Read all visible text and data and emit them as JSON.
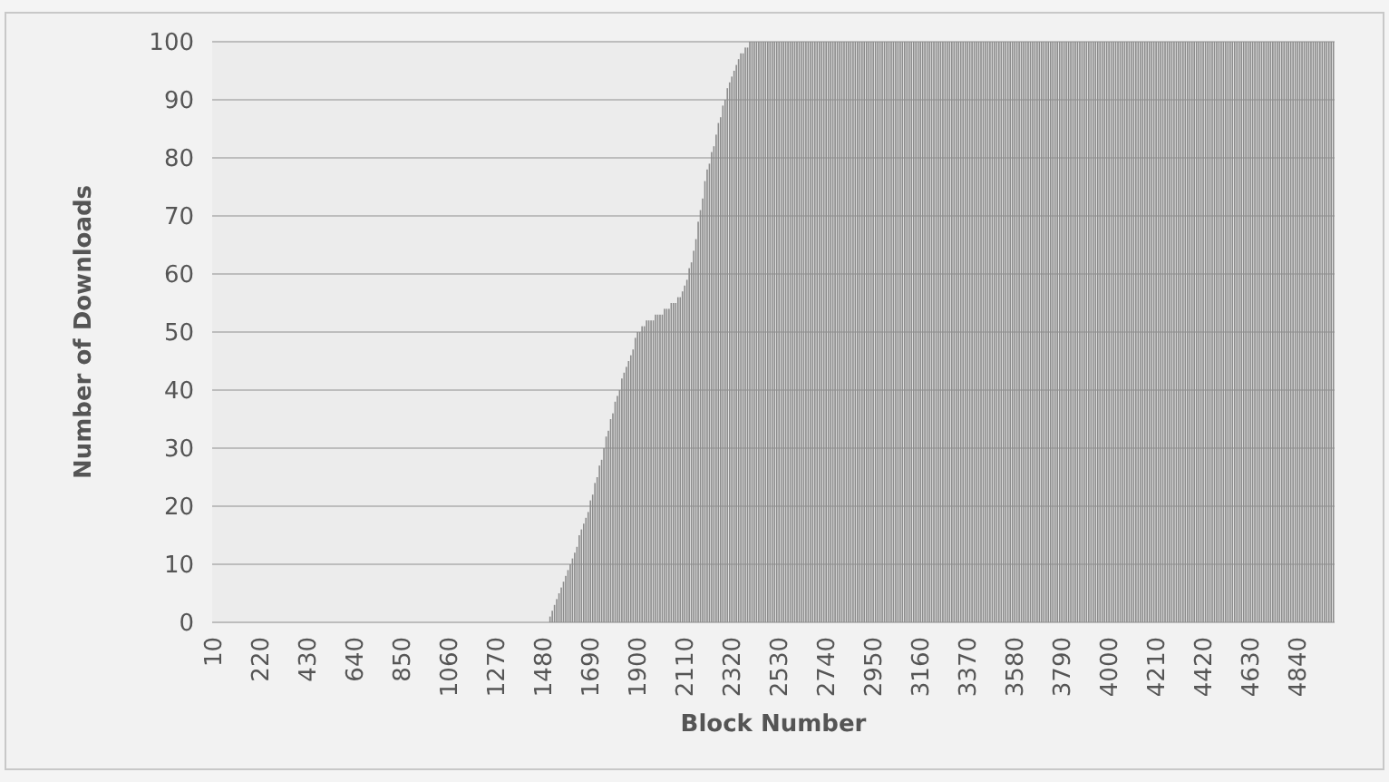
{
  "chart_data": {
    "type": "bar",
    "xlabel": "Block Number",
    "ylabel": "Number of Downloads",
    "color": "#8c8c8c",
    "ylim": [
      0,
      100
    ],
    "yticks": [
      0,
      10,
      20,
      30,
      40,
      50,
      60,
      70,
      80,
      90,
      100
    ],
    "grid": "y",
    "categories": [
      "10",
      null,
      null,
      null,
      null,
      null,
      null,
      null,
      null,
      null,
      null,
      null,
      null,
      null,
      null,
      null,
      null,
      null,
      null,
      null,
      null,
      "220",
      null,
      null,
      null,
      null,
      null,
      null,
      null,
      null,
      null,
      null,
      null,
      null,
      null,
      null,
      null,
      null,
      null,
      null,
      null,
      null,
      "430",
      null,
      null,
      null,
      null,
      null,
      null,
      null,
      null,
      null,
      null,
      null,
      null,
      null,
      null,
      null,
      null,
      null,
      null,
      null,
      null,
      "640",
      null,
      null,
      null,
      null,
      null,
      null,
      null,
      null,
      null,
      null,
      null,
      null,
      null,
      null,
      null,
      null,
      null,
      null,
      null,
      null,
      "850",
      null,
      null,
      null,
      null,
      null,
      null,
      null,
      null,
      null,
      null,
      null,
      null,
      null,
      null,
      null,
      null,
      null,
      null,
      null,
      null,
      "1060",
      null,
      null,
      null,
      null,
      null,
      null,
      null,
      null,
      null,
      null,
      null,
      null,
      null,
      null,
      null,
      null,
      null,
      null,
      null,
      null,
      "1270",
      null,
      null,
      null,
      null,
      null,
      null,
      null,
      null,
      null,
      null,
      null,
      null,
      null,
      null,
      null,
      null,
      null,
      null,
      null,
      null,
      "1480",
      null,
      null,
      null,
      null,
      null,
      null,
      null,
      null,
      null,
      null,
      null,
      null,
      null,
      null,
      null,
      null,
      null,
      null,
      null,
      null,
      "1690",
      null,
      null,
      null,
      null,
      null,
      null,
      null,
      null,
      null,
      null,
      null,
      null,
      null,
      null,
      null,
      null,
      null,
      null,
      null,
      null,
      "1900",
      null,
      null,
      null,
      null,
      null,
      null,
      null,
      null,
      null,
      null,
      null,
      null,
      null,
      null,
      null,
      null,
      null,
      null,
      null,
      null,
      "2110",
      null,
      null,
      null,
      null,
      null,
      null,
      null,
      null,
      null,
      null,
      null,
      null,
      null,
      null,
      null,
      null,
      null,
      null,
      null,
      null,
      "2320",
      null,
      null,
      null,
      null,
      null,
      null,
      null,
      null,
      null,
      null,
      null,
      null,
      null,
      null,
      null,
      null,
      null,
      null,
      null,
      null,
      "2530",
      null,
      null,
      null,
      null,
      null,
      null,
      null,
      null,
      null,
      null,
      null,
      null,
      null,
      null,
      null,
      null,
      null,
      null,
      null,
      null,
      "2740",
      null,
      null,
      null,
      null,
      null,
      null,
      null,
      null,
      null,
      null,
      null,
      null,
      null,
      null,
      null,
      null,
      null,
      null,
      null,
      null,
      "2950",
      null,
      null,
      null,
      null,
      null,
      null,
      null,
      null,
      null,
      null,
      null,
      null,
      null,
      null,
      null,
      null,
      null,
      null,
      null,
      null,
      "3160",
      null,
      null,
      null,
      null,
      null,
      null,
      null,
      null,
      null,
      null,
      null,
      null,
      null,
      null,
      null,
      null,
      null,
      null,
      null,
      null,
      "3370",
      null,
      null,
      null,
      null,
      null,
      null,
      null,
      null,
      null,
      null,
      null,
      null,
      null,
      null,
      null,
      null,
      null,
      null,
      null,
      null,
      "3580",
      null,
      null,
      null,
      null,
      null,
      null,
      null,
      null,
      null,
      null,
      null,
      null,
      null,
      null,
      null,
      null,
      null,
      null,
      null,
      null,
      "3790",
      null,
      null,
      null,
      null,
      null,
      null,
      null,
      null,
      null,
      null,
      null,
      null,
      null,
      null,
      null,
      null,
      null,
      null,
      null,
      null,
      "4000",
      null,
      null,
      null,
      null,
      null,
      null,
      null,
      null,
      null,
      null,
      null,
      null,
      null,
      null,
      null,
      null,
      null,
      null,
      null,
      null,
      "4210",
      null,
      null,
      null,
      null,
      null,
      null,
      null,
      null,
      null,
      null,
      null,
      null,
      null,
      null,
      null,
      null,
      null,
      null,
      null,
      null,
      "4420",
      null,
      null,
      null,
      null,
      null,
      null,
      null,
      null,
      null,
      null,
      null,
      null,
      null,
      null,
      null,
      null,
      null,
      null,
      null,
      null,
      "4630",
      null,
      null,
      null,
      null,
      null,
      null,
      null,
      null,
      null,
      null,
      null,
      null,
      null,
      null,
      null,
      null,
      null,
      null,
      null,
      null,
      "4840",
      null,
      null,
      null,
      null,
      null,
      null,
      null,
      null,
      null,
      null,
      null,
      null,
      null,
      null,
      null,
      null
    ],
    "values": [
      0,
      0,
      0,
      0,
      0,
      0,
      0,
      0,
      0,
      0,
      0,
      0,
      0,
      0,
      0,
      0,
      0,
      0,
      0,
      0,
      0,
      0,
      0,
      0,
      0,
      0,
      0,
      0,
      0,
      0,
      0,
      0,
      0,
      0,
      0,
      0,
      0,
      0,
      0,
      0,
      0,
      0,
      0,
      0,
      0,
      0,
      0,
      0,
      0,
      0,
      0,
      0,
      0,
      0,
      0,
      0,
      0,
      0,
      0,
      0,
      0,
      0,
      0,
      0,
      0,
      0,
      0,
      0,
      0,
      0,
      0,
      0,
      0,
      0,
      0,
      0,
      0,
      0,
      0,
      0,
      0,
      0,
      0,
      0,
      0,
      0,
      0,
      0,
      0,
      0,
      0,
      0,
      0,
      0,
      0,
      0,
      0,
      0,
      0,
      0,
      0,
      0,
      0,
      0,
      0,
      0,
      0,
      0,
      0,
      0,
      0,
      0,
      0,
      0,
      0,
      0,
      0,
      0,
      0,
      0,
      0,
      0,
      0,
      0,
      0,
      0,
      0,
      0,
      0,
      0,
      0,
      0,
      0,
      0,
      0,
      0,
      0,
      0,
      0,
      0,
      0,
      0,
      0,
      0,
      0,
      0,
      0,
      0,
      0,
      0,
      1,
      2,
      3,
      4,
      5,
      6,
      7,
      8,
      9,
      10,
      11,
      12,
      13,
      15,
      16,
      17,
      18,
      19,
      21,
      22,
      24,
      25,
      27,
      28,
      30,
      32,
      33,
      35,
      36,
      38,
      39,
      40,
      42,
      43,
      44,
      45,
      46,
      47,
      49,
      50,
      50,
      51,
      51,
      52,
      52,
      52,
      52,
      53,
      53,
      53,
      53,
      54,
      54,
      54,
      55,
      55,
      55,
      56,
      56,
      57,
      58,
      59,
      61,
      62,
      64,
      66,
      69,
      71,
      73,
      76,
      78,
      79,
      81,
      82,
      84,
      86,
      87,
      89,
      90,
      92,
      93,
      94,
      95,
      96,
      97,
      98,
      98,
      99,
      99,
      100,
      100,
      100,
      100,
      100,
      100,
      100,
      100,
      100,
      100,
      100,
      100,
      100,
      100,
      100,
      100,
      100,
      100,
      100,
      100,
      100,
      100,
      100,
      100,
      100,
      100,
      100,
      100,
      100,
      100,
      100,
      100,
      100,
      100,
      100,
      100,
      100,
      100,
      100,
      100,
      100,
      100,
      100,
      100,
      100,
      100,
      100,
      100,
      100,
      100,
      100,
      100,
      100,
      100,
      100,
      100,
      100,
      100,
      100,
      100,
      100,
      100,
      100,
      100,
      100,
      100,
      100,
      100,
      100,
      100,
      100,
      100,
      100,
      100,
      100,
      100,
      100,
      100,
      100,
      100,
      100,
      100,
      100,
      100,
      100,
      100,
      100,
      100,
      100,
      100,
      100,
      100,
      100,
      100,
      100,
      100,
      100,
      100,
      100,
      100,
      100,
      100,
      100,
      100,
      100,
      100,
      100,
      100,
      100,
      100,
      100,
      100,
      100,
      100,
      100,
      100,
      100,
      100,
      100,
      100,
      100,
      100,
      100,
      100,
      100,
      100,
      100,
      100,
      100,
      100,
      100,
      100,
      100,
      100,
      100,
      100,
      100,
      100,
      100,
      100,
      100,
      100,
      100,
      100,
      100,
      100,
      100,
      100,
      100,
      100,
      100,
      100,
      100,
      100,
      100,
      100,
      100,
      100,
      100,
      100,
      100,
      100,
      100,
      100,
      100,
      100,
      100,
      100,
      100,
      100,
      100,
      100,
      100,
      100,
      100,
      100,
      100,
      100,
      100,
      100,
      100,
      100,
      100,
      100,
      100,
      100,
      100,
      100,
      100,
      100,
      100,
      100,
      100,
      100,
      100,
      100,
      100,
      100,
      100,
      100,
      100,
      100,
      100,
      100,
      100,
      100,
      100,
      100,
      100,
      100,
      100,
      100,
      100,
      100,
      100,
      100,
      100,
      100,
      100,
      100,
      100,
      100,
      100,
      100,
      100,
      100,
      100,
      100,
      100,
      100,
      100,
      100,
      100,
      100,
      100,
      100,
      100,
      100,
      100,
      100,
      100,
      100,
      100,
      100,
      100,
      100,
      100,
      100,
      100,
      100,
      100,
      100,
      100,
      100,
      100,
      100,
      100,
      100,
      100,
      100,
      100
    ]
  }
}
